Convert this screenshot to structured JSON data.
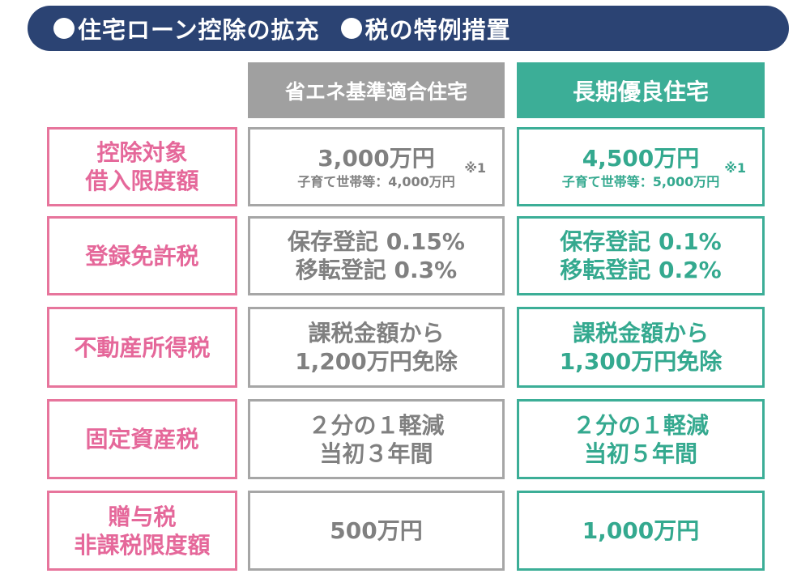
{
  "banner": {
    "item1": "住宅ローン控除の拡充",
    "item2": "税の特例措置"
  },
  "columns": {
    "energy": "省エネ基準適合住宅",
    "longterm": "長期優良住宅"
  },
  "rows": [
    {
      "label_line1": "控除対象",
      "label_line2": "借入限度額",
      "energy_line1": "3,000万円",
      "energy_note": "※1",
      "energy_sub": "子育て世帯等：4,000万円",
      "longterm_line1": "4,500万円",
      "longterm_note": "※1",
      "longterm_sub": "子育て世帯等：5,000万円"
    },
    {
      "label_line1": "登録免許税",
      "energy_line1": "保存登記 0.15%",
      "energy_line2": "移転登記 0.3%",
      "longterm_line1": "保存登記 0.1%",
      "longterm_line2": "移転登記 0.2%"
    },
    {
      "label_line1": "不動産所得税",
      "energy_line1": "課税金額から",
      "energy_line2": "1,200万円免除",
      "longterm_line1": "課税金額から",
      "longterm_line2": "1,300万円免除"
    },
    {
      "label_line1": "固定資産税",
      "energy_line1": "２分の１軽減",
      "energy_line2": "当初３年間",
      "longterm_line1": "２分の１軽減",
      "longterm_line2": "当初５年間"
    },
    {
      "label_line1": "贈与税",
      "label_line2": "非課税限度額",
      "energy_line1": "500万円",
      "longterm_line1": "1,000万円"
    }
  ],
  "colors": {
    "banner": "#2b4373",
    "pink": "#e5689a",
    "gray": "#a0a0a0",
    "teal": "#3cae97"
  }
}
